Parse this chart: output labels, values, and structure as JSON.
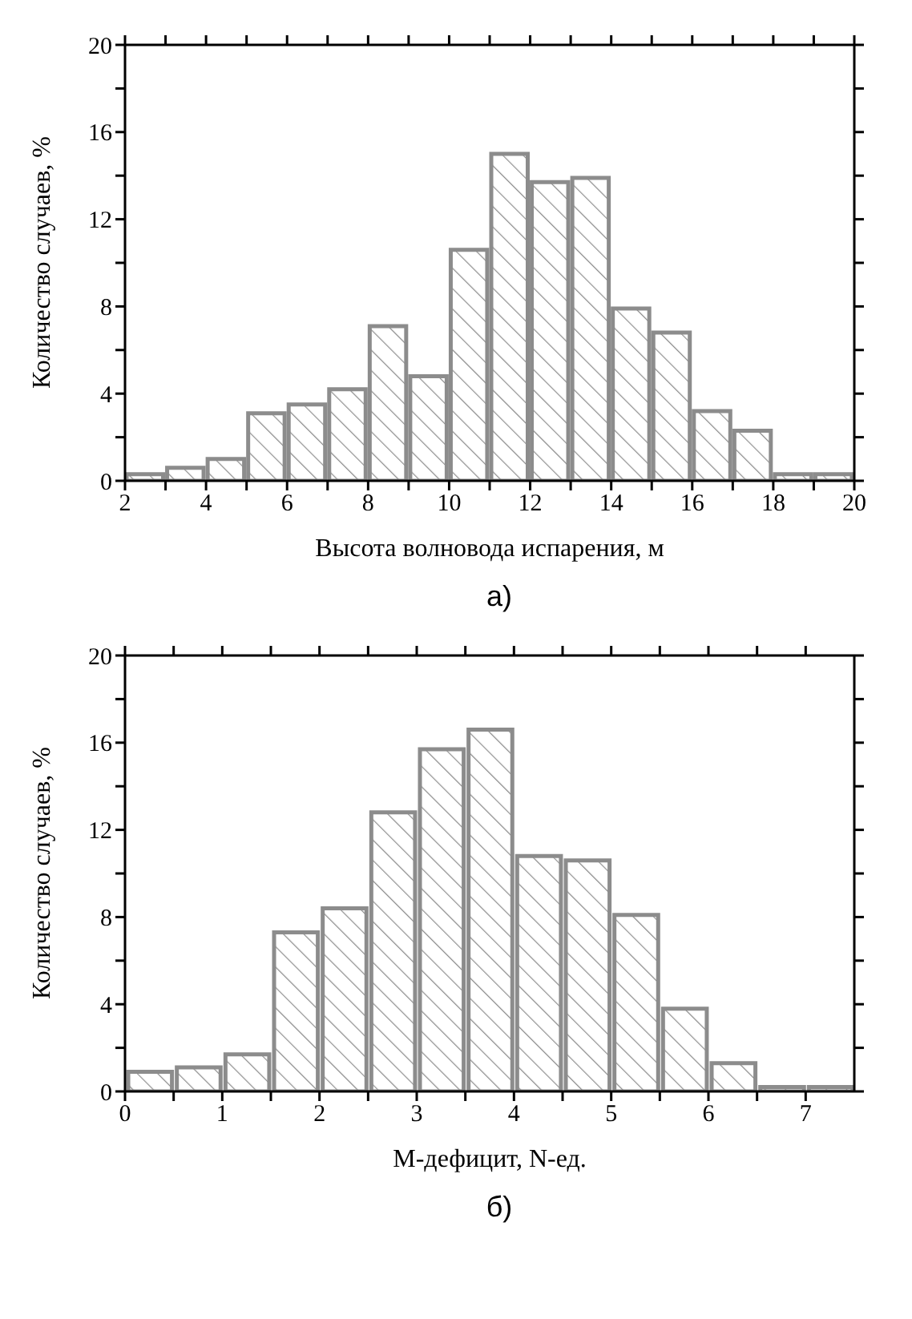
{
  "chart_data": [
    {
      "type": "histogram",
      "xlabel": "Высота волновода испарения, м",
      "ylabel": "Количество случаев, %",
      "annotations": [
        "а)"
      ],
      "color": "#8c8c8c",
      "bins": [
        2,
        3,
        4,
        5,
        6,
        7,
        8,
        9,
        10,
        11,
        12,
        13,
        14,
        15,
        16,
        17,
        18,
        19,
        20
      ],
      "values": [
        0.3,
        0.6,
        1.0,
        3.1,
        3.5,
        4.2,
        7.1,
        4.8,
        10.6,
        15.0,
        13.7,
        13.9,
        7.9,
        6.8,
        3.2,
        2.3,
        0.3,
        0.3
      ],
      "xlim": [
        2,
        20
      ],
      "xticks": [
        2,
        {
          "value": 3,
          "label": null
        },
        4,
        {
          "value": 5,
          "label": null
        },
        6,
        {
          "value": 7,
          "label": null
        },
        8,
        {
          "value": 9,
          "label": null
        },
        10,
        {
          "value": 11,
          "label": null
        },
        12,
        {
          "value": 13,
          "label": null
        },
        14,
        {
          "value": 15,
          "label": null
        },
        16,
        {
          "value": 17,
          "label": null
        },
        18,
        {
          "value": 19,
          "label": null
        },
        20
      ],
      "ylim": [
        0,
        20
      ],
      "yticks": [
        0,
        {
          "value": 2,
          "label": null
        },
        4,
        {
          "value": 6,
          "label": null
        },
        8,
        {
          "value": 10,
          "label": null
        },
        12,
        {
          "value": 14,
          "label": null
        },
        16,
        {
          "value": 18,
          "label": null
        },
        20
      ]
    },
    {
      "type": "histogram",
      "xlabel": "М-дефицит, N-ед.",
      "ylabel": "Количество случаев, %",
      "annotations": [
        "б)"
      ],
      "color": "#8c8c8c",
      "bins": [
        0,
        0.5,
        1,
        1.5,
        2,
        2.5,
        3,
        3.5,
        4,
        4.5,
        5,
        5.5,
        6,
        6.5,
        7,
        7.5
      ],
      "values": [
        0.9,
        1.1,
        1.7,
        7.3,
        8.4,
        12.8,
        15.7,
        16.6,
        10.8,
        10.6,
        8.1,
        3.8,
        1.3,
        0.2,
        0.2
      ],
      "xlim": [
        0,
        7.5
      ],
      "xticks": [
        0,
        {
          "value": 0.5,
          "label": null
        },
        1,
        {
          "value": 1.5,
          "label": null
        },
        2,
        {
          "value": 2.5,
          "label": null
        },
        3,
        {
          "value": 3.5,
          "label": null
        },
        4,
        {
          "value": 4.5,
          "label": null
        },
        5,
        {
          "value": 5.5,
          "label": null
        },
        6,
        {
          "value": 6.5,
          "label": null
        },
        7
      ],
      "ylim": [
        0,
        20
      ],
      "yticks": [
        0,
        {
          "value": 2,
          "label": null
        },
        4,
        {
          "value": 6,
          "label": null
        },
        8,
        {
          "value": 10,
          "label": null
        },
        12,
        {
          "value": 14,
          "label": null
        },
        16,
        {
          "value": 18,
          "label": null
        },
        20
      ]
    }
  ]
}
